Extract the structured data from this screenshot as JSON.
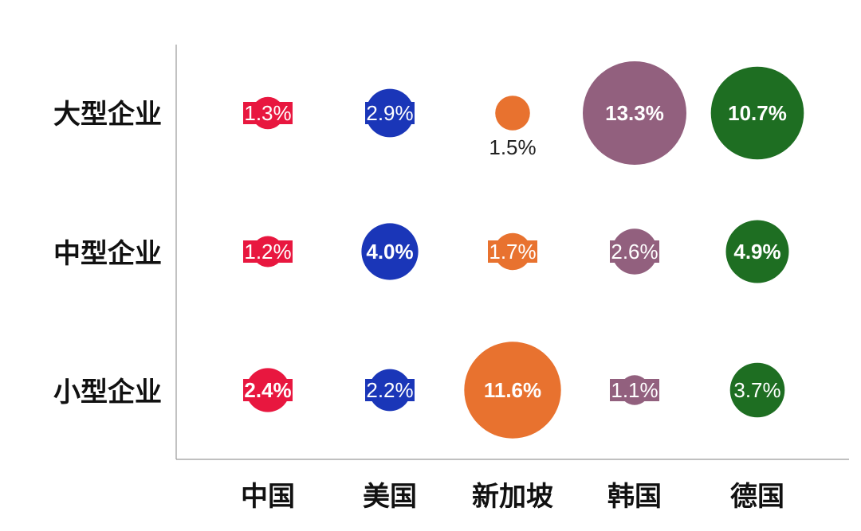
{
  "chart_data": {
    "type": "bubble-matrix",
    "title": "",
    "rows": [
      "大型企业",
      "中型企业",
      "小型企业"
    ],
    "columns": [
      "中国",
      "美国",
      "新加坡",
      "韩国",
      "德国"
    ],
    "colors": {
      "中国": "#e8173f",
      "美国": "#1a36b8",
      "新加坡": "#e8722f",
      "韩国": "#92607e",
      "德国": "#1e6e22"
    },
    "values": [
      [
        1.3,
        2.9,
        1.5,
        13.3,
        10.7
      ],
      [
        1.2,
        4.0,
        1.7,
        2.6,
        4.9
      ],
      [
        2.4,
        2.2,
        11.6,
        1.1,
        3.7
      ]
    ],
    "labels": [
      [
        "1.3%",
        "2.9%",
        "1.5%",
        "13.3%",
        "10.7%"
      ],
      [
        "1.2%",
        "4.0%",
        "1.7%",
        "2.6%",
        "4.9%"
      ],
      [
        "2.4%",
        "2.2%",
        "11.6%",
        "1.1%",
        "3.7%"
      ]
    ],
    "unit": "%"
  }
}
